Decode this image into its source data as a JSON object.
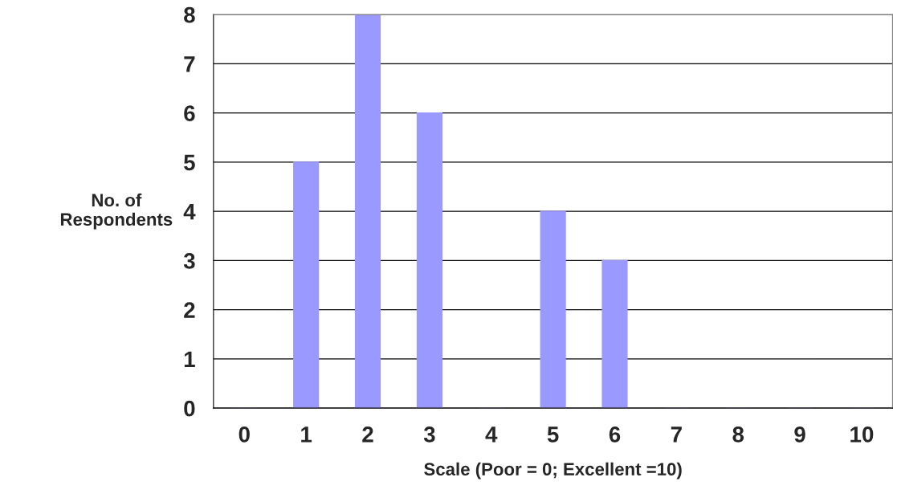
{
  "chart_data": {
    "type": "bar",
    "xlabel": "Scale (Poor = 0; Excellent =10)",
    "ylabel": "No. of\nRespondents",
    "categories": [
      "0",
      "1",
      "2",
      "3",
      "4",
      "5",
      "6",
      "7",
      "8",
      "9",
      "10"
    ],
    "values": [
      0,
      5,
      8,
      6,
      0,
      4,
      3,
      0,
      0,
      0,
      0
    ],
    "color": "#9999ff",
    "ylim": [
      0,
      8
    ],
    "yticks": [
      0,
      1,
      2,
      3,
      4,
      5,
      6,
      7,
      8
    ],
    "grid": "y",
    "legend": false
  }
}
